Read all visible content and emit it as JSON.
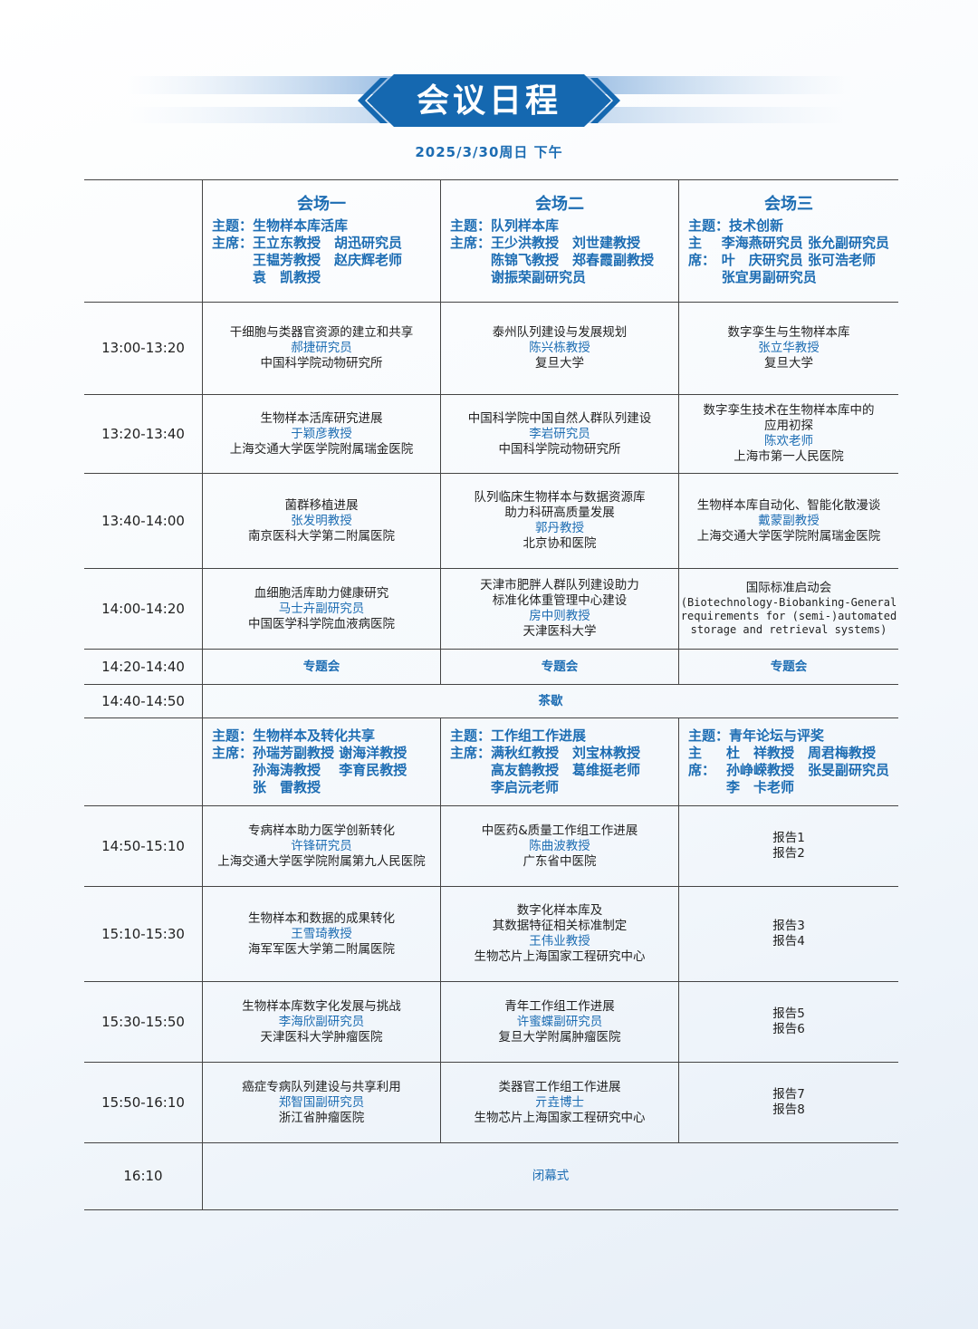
{
  "title": "会议日程",
  "date": "2025/3/30周日 下午",
  "part1": {
    "sessions": [
      {
        "venue": "会场一",
        "theme_label": "主题：",
        "theme": "生物样本库活库",
        "chair_label": "主席：",
        "chairs": [
          "王立东教授　胡迅研究员",
          "王韫芳教授　赵庆辉老师",
          "袁　凯教授"
        ]
      },
      {
        "venue": "会场二",
        "theme_label": "主题：",
        "theme": "队列样本库",
        "chair_label": "主席：",
        "chairs": [
          "王少洪教授　刘世建教授",
          "陈锦飞教授　郑春霞副教授",
          "谢振荣副研究员"
        ]
      },
      {
        "venue": "会场三",
        "theme_label": "主题：",
        "theme": "技术创新",
        "chair_label": "主席：",
        "chairs": [
          "李海燕研究员 张允副研究员",
          "叶　庆研究员 张可浩老师",
          "张宜男副研究员"
        ]
      }
    ],
    "slots": [
      {
        "time": "13:00-13:20",
        "cells": [
          {
            "title": [
              "干细胞与类器官资源的建立和共享"
            ],
            "speaker": "郝捷研究员",
            "affiliation": "中国科学院动物研究所"
          },
          {
            "title": [
              "泰州队列建设与发展规划"
            ],
            "speaker": "陈兴栋教授",
            "affiliation": "复旦大学"
          },
          {
            "title": [
              "数字孪生与生物样本库"
            ],
            "speaker": "张立华教授",
            "affiliation": "复旦大学"
          }
        ]
      },
      {
        "time": "13:20-13:40",
        "cells": [
          {
            "title": [
              "生物样本活库研究进展"
            ],
            "speaker": "于颖彦教授",
            "affiliation": "上海交通大学医学院附属瑞金医院"
          },
          {
            "title": [
              "中国科学院中国自然人群队列建设"
            ],
            "speaker": "李岩研究员",
            "affiliation": "中国科学院动物研究所"
          },
          {
            "title": [
              "数字孪生技术在生物样本库中的",
              "应用初探"
            ],
            "speaker": "陈欢老师",
            "affiliation": "上海市第一人民医院"
          }
        ]
      },
      {
        "time": "13:40-14:00",
        "cells": [
          {
            "title": [
              "菌群移植进展"
            ],
            "speaker": "张发明教授",
            "affiliation": "南京医科大学第二附属医院"
          },
          {
            "title": [
              "队列临床生物样本与数据资源库",
              "助力科研高质量发展"
            ],
            "speaker": "郭丹教授",
            "affiliation": "北京协和医院"
          },
          {
            "title": [
              "生物样本库自动化、智能化散漫谈"
            ],
            "speaker": "戴蒙副教授",
            "affiliation": "上海交通大学医学院附属瑞金医院"
          }
        ]
      },
      {
        "time": "14:00-14:20",
        "cells": [
          {
            "title": [
              "血细胞活库助力健康研究"
            ],
            "speaker": "马士卉副研究员",
            "affiliation": "中国医学科学院血液病医院"
          },
          {
            "title": [
              "天津市肥胖人群队列建设助力",
              "标准化体重管理中心建设"
            ],
            "speaker": "房中则教授",
            "affiliation": "天津医科大学"
          },
          {
            "title": [
              "国际标准启动会"
            ],
            "detail": [
              "(Biotechnology-Biobanking-General",
              "requirements for (semi-)automated",
              "storage and retrieval systems)"
            ]
          }
        ]
      },
      {
        "time": "14:20-14:40",
        "cells": [
          {
            "text": "专题会"
          },
          {
            "text": "专题会"
          },
          {
            "text": "专题会"
          }
        ]
      },
      {
        "time": "14:40-14:50",
        "all": "茶歇"
      }
    ]
  },
  "part2": {
    "sessions": [
      {
        "theme_label": "主题：",
        "theme": "生物样本及转化共享",
        "chair_label": "主席：",
        "chairs": [
          "孙瑞芳副教授 谢海洋教授",
          "孙海涛教授　 李育民教授",
          "张　雷教授"
        ]
      },
      {
        "theme_label": "主题：",
        "theme": "工作组工作进展",
        "chair_label": "主席：",
        "chairs": [
          "满秋红教授　刘宝林教授",
          "高友鹤教授　葛维挺老师",
          "李启沅老师"
        ]
      },
      {
        "theme_label": "主题：",
        "theme": "青年论坛与评奖",
        "chair_label": "主席：",
        "chairs": [
          "杜　祥教授　周君梅教授",
          "孙峥嵘教授　张旻副研究员",
          "李　卡老师"
        ]
      }
    ],
    "slots": [
      {
        "time": "14:50-15:10",
        "cells": [
          {
            "title": [
              "专病样本助力医学创新转化"
            ],
            "speaker": "许锋研究员",
            "affiliation": "上海交通大学医学院附属第九人民医院"
          },
          {
            "title": [
              "中医药&质量工作组工作进展"
            ],
            "speaker": "陈曲波教授",
            "affiliation": "广东省中医院"
          },
          {
            "reports": [
              "报告1",
              "报告2"
            ]
          }
        ]
      },
      {
        "time": "15:10-15:30",
        "cells": [
          {
            "title": [
              "生物样本和数据的成果转化"
            ],
            "speaker": "王雪琦教授",
            "affiliation": "海军军医大学第二附属医院"
          },
          {
            "title": [
              "数字化样本库及",
              "其数据特征相关标准制定"
            ],
            "speaker": "王伟业教授",
            "affiliation": "生物芯片上海国家工程研究中心"
          },
          {
            "reports": [
              "报告3",
              "报告4"
            ]
          }
        ]
      },
      {
        "time": "15:30-15:50",
        "cells": [
          {
            "title": [
              "生物样本库数字化发展与挑战"
            ],
            "speaker": "李海欣副研究员",
            "affiliation": "天津医科大学肿瘤医院"
          },
          {
            "title": [
              "青年工作组工作进展"
            ],
            "speaker": "许蜜蝶副研究员",
            "affiliation": "复旦大学附属肿瘤医院"
          },
          {
            "reports": [
              "报告5",
              "报告6"
            ]
          }
        ]
      },
      {
        "time": "15:50-16:10",
        "cells": [
          {
            "title": [
              "癌症专病队列建设与共享利用"
            ],
            "speaker": "郑智国副研究员",
            "affiliation": "浙江省肿瘤医院"
          },
          {
            "title": [
              "类器官工作组工作进展"
            ],
            "speaker": "亓垚博士",
            "affiliation": "生物芯片上海国家工程研究中心"
          },
          {
            "reports": [
              "报告7",
              "报告8"
            ]
          }
        ]
      },
      {
        "time": "16:10",
        "all": "闭幕式"
      }
    ]
  }
}
